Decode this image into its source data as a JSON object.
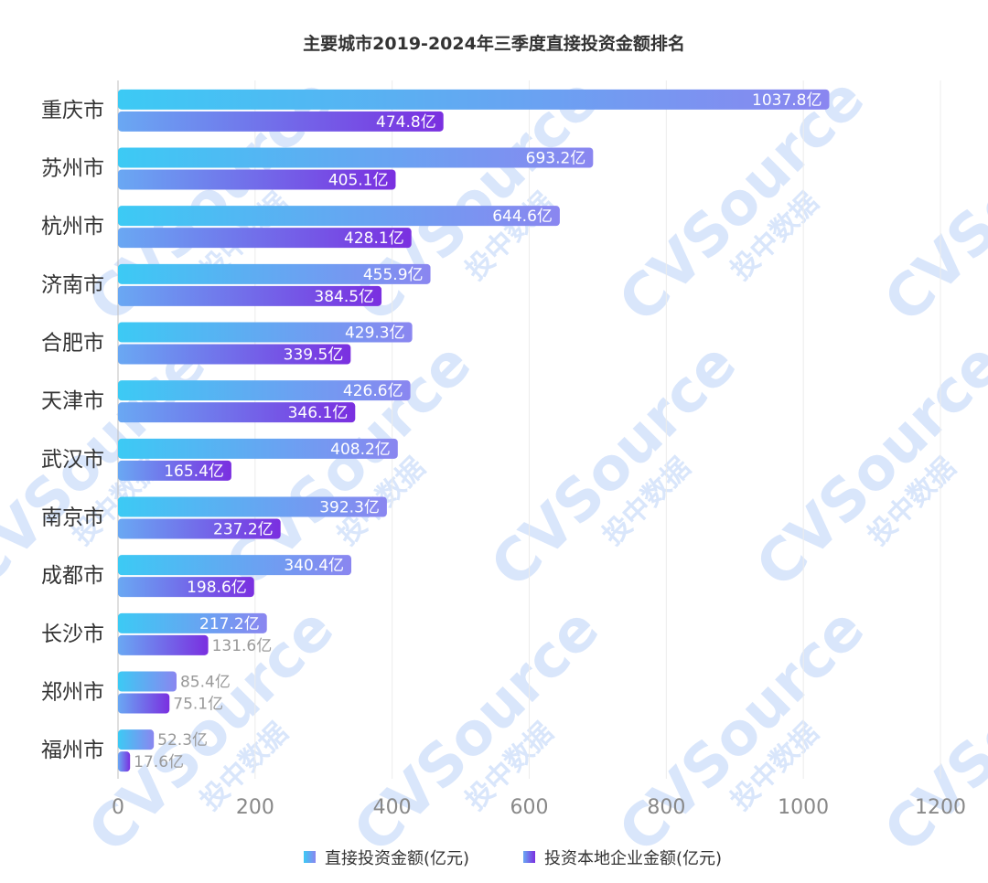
{
  "chart_data": {
    "type": "bar",
    "orientation": "horizontal",
    "title": "主要城市2019-2024年三季度直接投资金额排名",
    "categories": [
      "重庆市",
      "苏州市",
      "杭州市",
      "济南市",
      "合肥市",
      "天津市",
      "武汉市",
      "南京市",
      "成都市",
      "长沙市",
      "郑州市",
      "福州市"
    ],
    "series": [
      {
        "name": "直接投资金额(亿元)",
        "values": [
          1037.8,
          693.2,
          644.6,
          455.9,
          429.3,
          426.6,
          408.2,
          392.3,
          340.4,
          217.2,
          85.4,
          52.3
        ],
        "labels": [
          "1037.8亿",
          "693.2亿",
          "644.6亿",
          "455.9亿",
          "429.3亿",
          "426.6亿",
          "408.2亿",
          "392.3亿",
          "340.4亿",
          "217.2亿",
          "85.4亿",
          "52.3亿"
        ],
        "color_start": "#3ccaf4",
        "color_end": "#8a86f0"
      },
      {
        "name": "投资本地企业金额(亿元)",
        "values": [
          474.8,
          405.1,
          428.1,
          384.5,
          339.5,
          346.1,
          165.4,
          237.2,
          198.6,
          131.6,
          75.1,
          17.6
        ],
        "labels": [
          "474.8亿",
          "405.1亿",
          "428.1亿",
          "384.5亿",
          "339.5亿",
          "346.1亿",
          "165.4亿",
          "237.2亿",
          "198.6亿",
          "131.6亿",
          "75.1亿",
          "17.6亿"
        ],
        "color_start": "#6aa8f3",
        "color_end": "#7a2fe0"
      }
    ],
    "xlim": [
      0,
      1200
    ],
    "xticks": [
      0,
      200,
      400,
      600,
      800,
      1000,
      1200
    ],
    "xtick_labels": [
      "0",
      "200",
      "400",
      "600",
      "800",
      "1000",
      "1200"
    ],
    "grid": "vertical",
    "legend_position": "bottom-center"
  },
  "watermark": {
    "brand": "CVSource",
    "cn": "投中数据"
  }
}
